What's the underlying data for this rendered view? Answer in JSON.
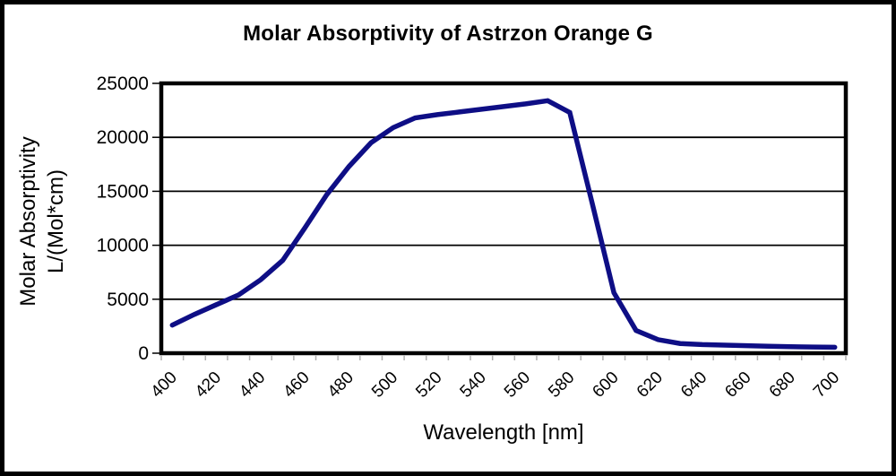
{
  "chart_data": {
    "type": "line",
    "title": "Molar Absorptivity of Astrzon Orange G",
    "xlabel": "Wavelength [nm]",
    "ylabel_line1": "Molar Absorptivity",
    "ylabel_line2": "L/(Mol*cm)",
    "x": [
      400,
      410,
      420,
      430,
      440,
      450,
      460,
      470,
      480,
      490,
      500,
      510,
      520,
      530,
      540,
      550,
      560,
      570,
      580,
      590,
      600,
      610,
      620,
      630,
      640,
      650,
      660,
      670,
      680,
      690,
      700
    ],
    "values": [
      2600,
      3600,
      4500,
      5400,
      6800,
      8600,
      11600,
      14700,
      17300,
      19500,
      20900,
      21800,
      22100,
      22350,
      22600,
      22850,
      23100,
      23400,
      22300,
      14000,
      5600,
      2100,
      1250,
      900,
      800,
      750,
      700,
      650,
      600,
      570,
      550
    ],
    "x_tick_labels": [
      "400",
      "420",
      "440",
      "460",
      "480",
      "500",
      "520",
      "540",
      "560",
      "580",
      "600",
      "620",
      "640",
      "660",
      "680",
      "700"
    ],
    "y_ticks": [
      0,
      5000,
      10000,
      15000,
      20000,
      25000
    ],
    "y_tick_labels": [
      "0",
      "5000",
      "10000",
      "15000",
      "20000",
      "25000"
    ],
    "xlim": [
      400,
      700
    ],
    "ylim": [
      0,
      25000
    ],
    "grid": "horizontal",
    "legend": "none",
    "line_color": "#0E0E85",
    "plot_border_color": "#000000",
    "gridline_color": "#000000",
    "minor_tick_color": "#b0b0b0",
    "background": "#FFFFFF"
  }
}
